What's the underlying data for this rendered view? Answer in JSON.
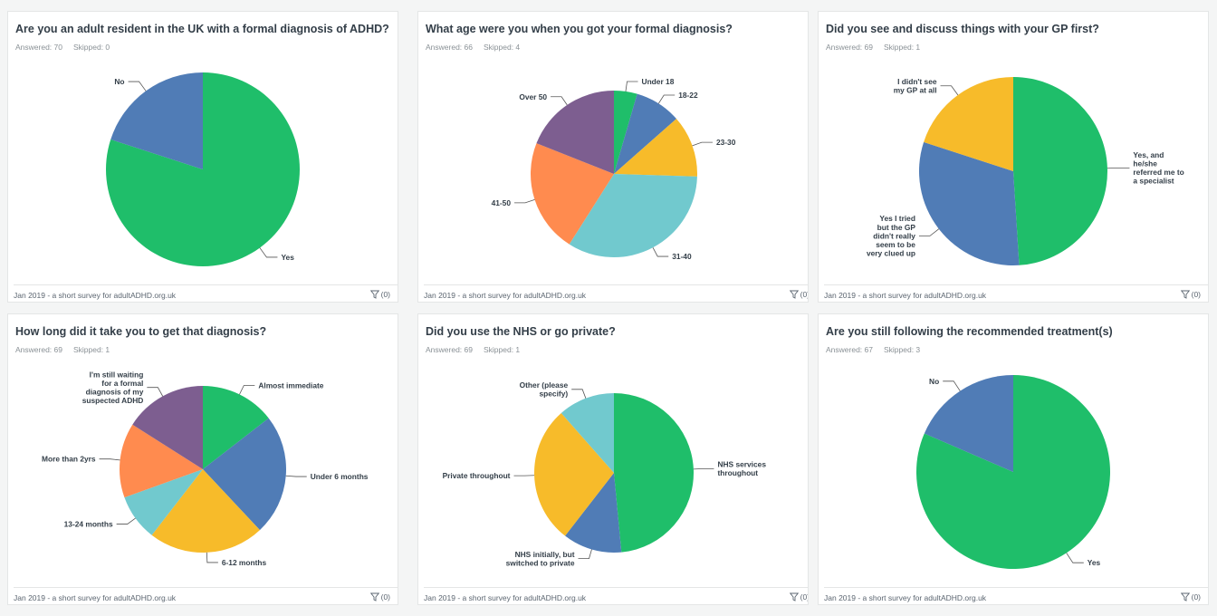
{
  "footer_text": "Jan 2019 - a short survey for adultADHD.org.uk",
  "filter_count": "(0)",
  "colors": {
    "green": "#1fbe6a",
    "blue": "#507cb6",
    "yellow": "#f7bb2a",
    "teal": "#71c9ce",
    "orange": "#ff8b4f",
    "purple": "#7d5e90"
  },
  "cards": [
    {
      "title": "Are you an adult resident in the UK with a formal diagnosis of ADHD?",
      "answered": "Answered: 70",
      "skipped": "Skipped: 0"
    },
    {
      "title": "What age were you when you got your formal diagnosis?",
      "answered": "Answered: 66",
      "skipped": "Skipped: 4"
    },
    {
      "title": "Did you see and discuss things with your GP first?",
      "answered": "Answered: 69",
      "skipped": "Skipped: 1"
    },
    {
      "title": "How long did it take you to get that diagnosis?",
      "answered": "Answered: 69",
      "skipped": "Skipped: 1"
    },
    {
      "title": "Did you use the NHS or go private?",
      "answered": "Answered: 69",
      "skipped": "Skipped: 1"
    },
    {
      "title": "Are you still following the recommended treatment(s)",
      "answered": "Answered: 67",
      "skipped": "Skipped: 3"
    }
  ],
  "chart_data": [
    {
      "type": "pie",
      "title": "Are you an adult resident in the UK with a formal diagnosis of ADHD?",
      "slices": [
        {
          "label": "Yes",
          "value": 0.8,
          "color": "#1fbe6a"
        },
        {
          "label": "No",
          "value": 0.2,
          "color": "#507cb6"
        }
      ]
    },
    {
      "type": "pie",
      "title": "What age were you when you got your formal diagnosis?",
      "slices": [
        {
          "label": "Under 18",
          "value": 0.045,
          "color": "#1fbe6a"
        },
        {
          "label": "18-22",
          "value": 0.09,
          "color": "#507cb6"
        },
        {
          "label": "23-30",
          "value": 0.12,
          "color": "#f7bb2a"
        },
        {
          "label": "31-40",
          "value": 0.335,
          "color": "#71c9ce"
        },
        {
          "label": "41-50",
          "value": 0.22,
          "color": "#ff8b4f"
        },
        {
          "label": "Over 50",
          "value": 0.19,
          "color": "#7d5e90"
        }
      ]
    },
    {
      "type": "pie",
      "title": "Did you see and discuss things with your GP first?",
      "slices": [
        {
          "label": "Yes, and he/she referred me to a specialist",
          "value": 0.49,
          "color": "#1fbe6a"
        },
        {
          "label": "Yes I tried but the GP didn't really seem to be very clued up",
          "value": 0.31,
          "color": "#507cb6"
        },
        {
          "label": "I didn't see my GP at all",
          "value": 0.2,
          "color": "#f7bb2a"
        }
      ]
    },
    {
      "type": "pie",
      "title": "How long did it take you to get that diagnosis?",
      "slices": [
        {
          "label": "Almost immediate",
          "value": 0.145,
          "color": "#1fbe6a"
        },
        {
          "label": "Under 6 months",
          "value": 0.235,
          "color": "#507cb6"
        },
        {
          "label": "6-12 months",
          "value": 0.225,
          "color": "#f7bb2a"
        },
        {
          "label": "13-24 months",
          "value": 0.09,
          "color": "#71c9ce"
        },
        {
          "label": "More than 2yrs",
          "value": 0.145,
          "color": "#ff8b4f"
        },
        {
          "label": "I'm still waiting for a formal diagnosis of my suspected ADHD",
          "value": 0.16,
          "color": "#7d5e90"
        }
      ]
    },
    {
      "type": "pie",
      "title": "Did you use the NHS or go private?",
      "slices": [
        {
          "label": "NHS services throughout",
          "value": 0.485,
          "color": "#1fbe6a"
        },
        {
          "label": "NHS initially, but switched to private",
          "value": 0.12,
          "color": "#507cb6"
        },
        {
          "label": "Private throughout",
          "value": 0.28,
          "color": "#f7bb2a"
        },
        {
          "label": "Other (please specify)",
          "value": 0.115,
          "color": "#71c9ce"
        }
      ]
    },
    {
      "type": "pie",
      "title": "Are you still following the recommended treatment(s)",
      "slices": [
        {
          "label": "Yes",
          "value": 0.815,
          "color": "#1fbe6a"
        },
        {
          "label": "No",
          "value": 0.185,
          "color": "#507cb6"
        }
      ]
    }
  ]
}
